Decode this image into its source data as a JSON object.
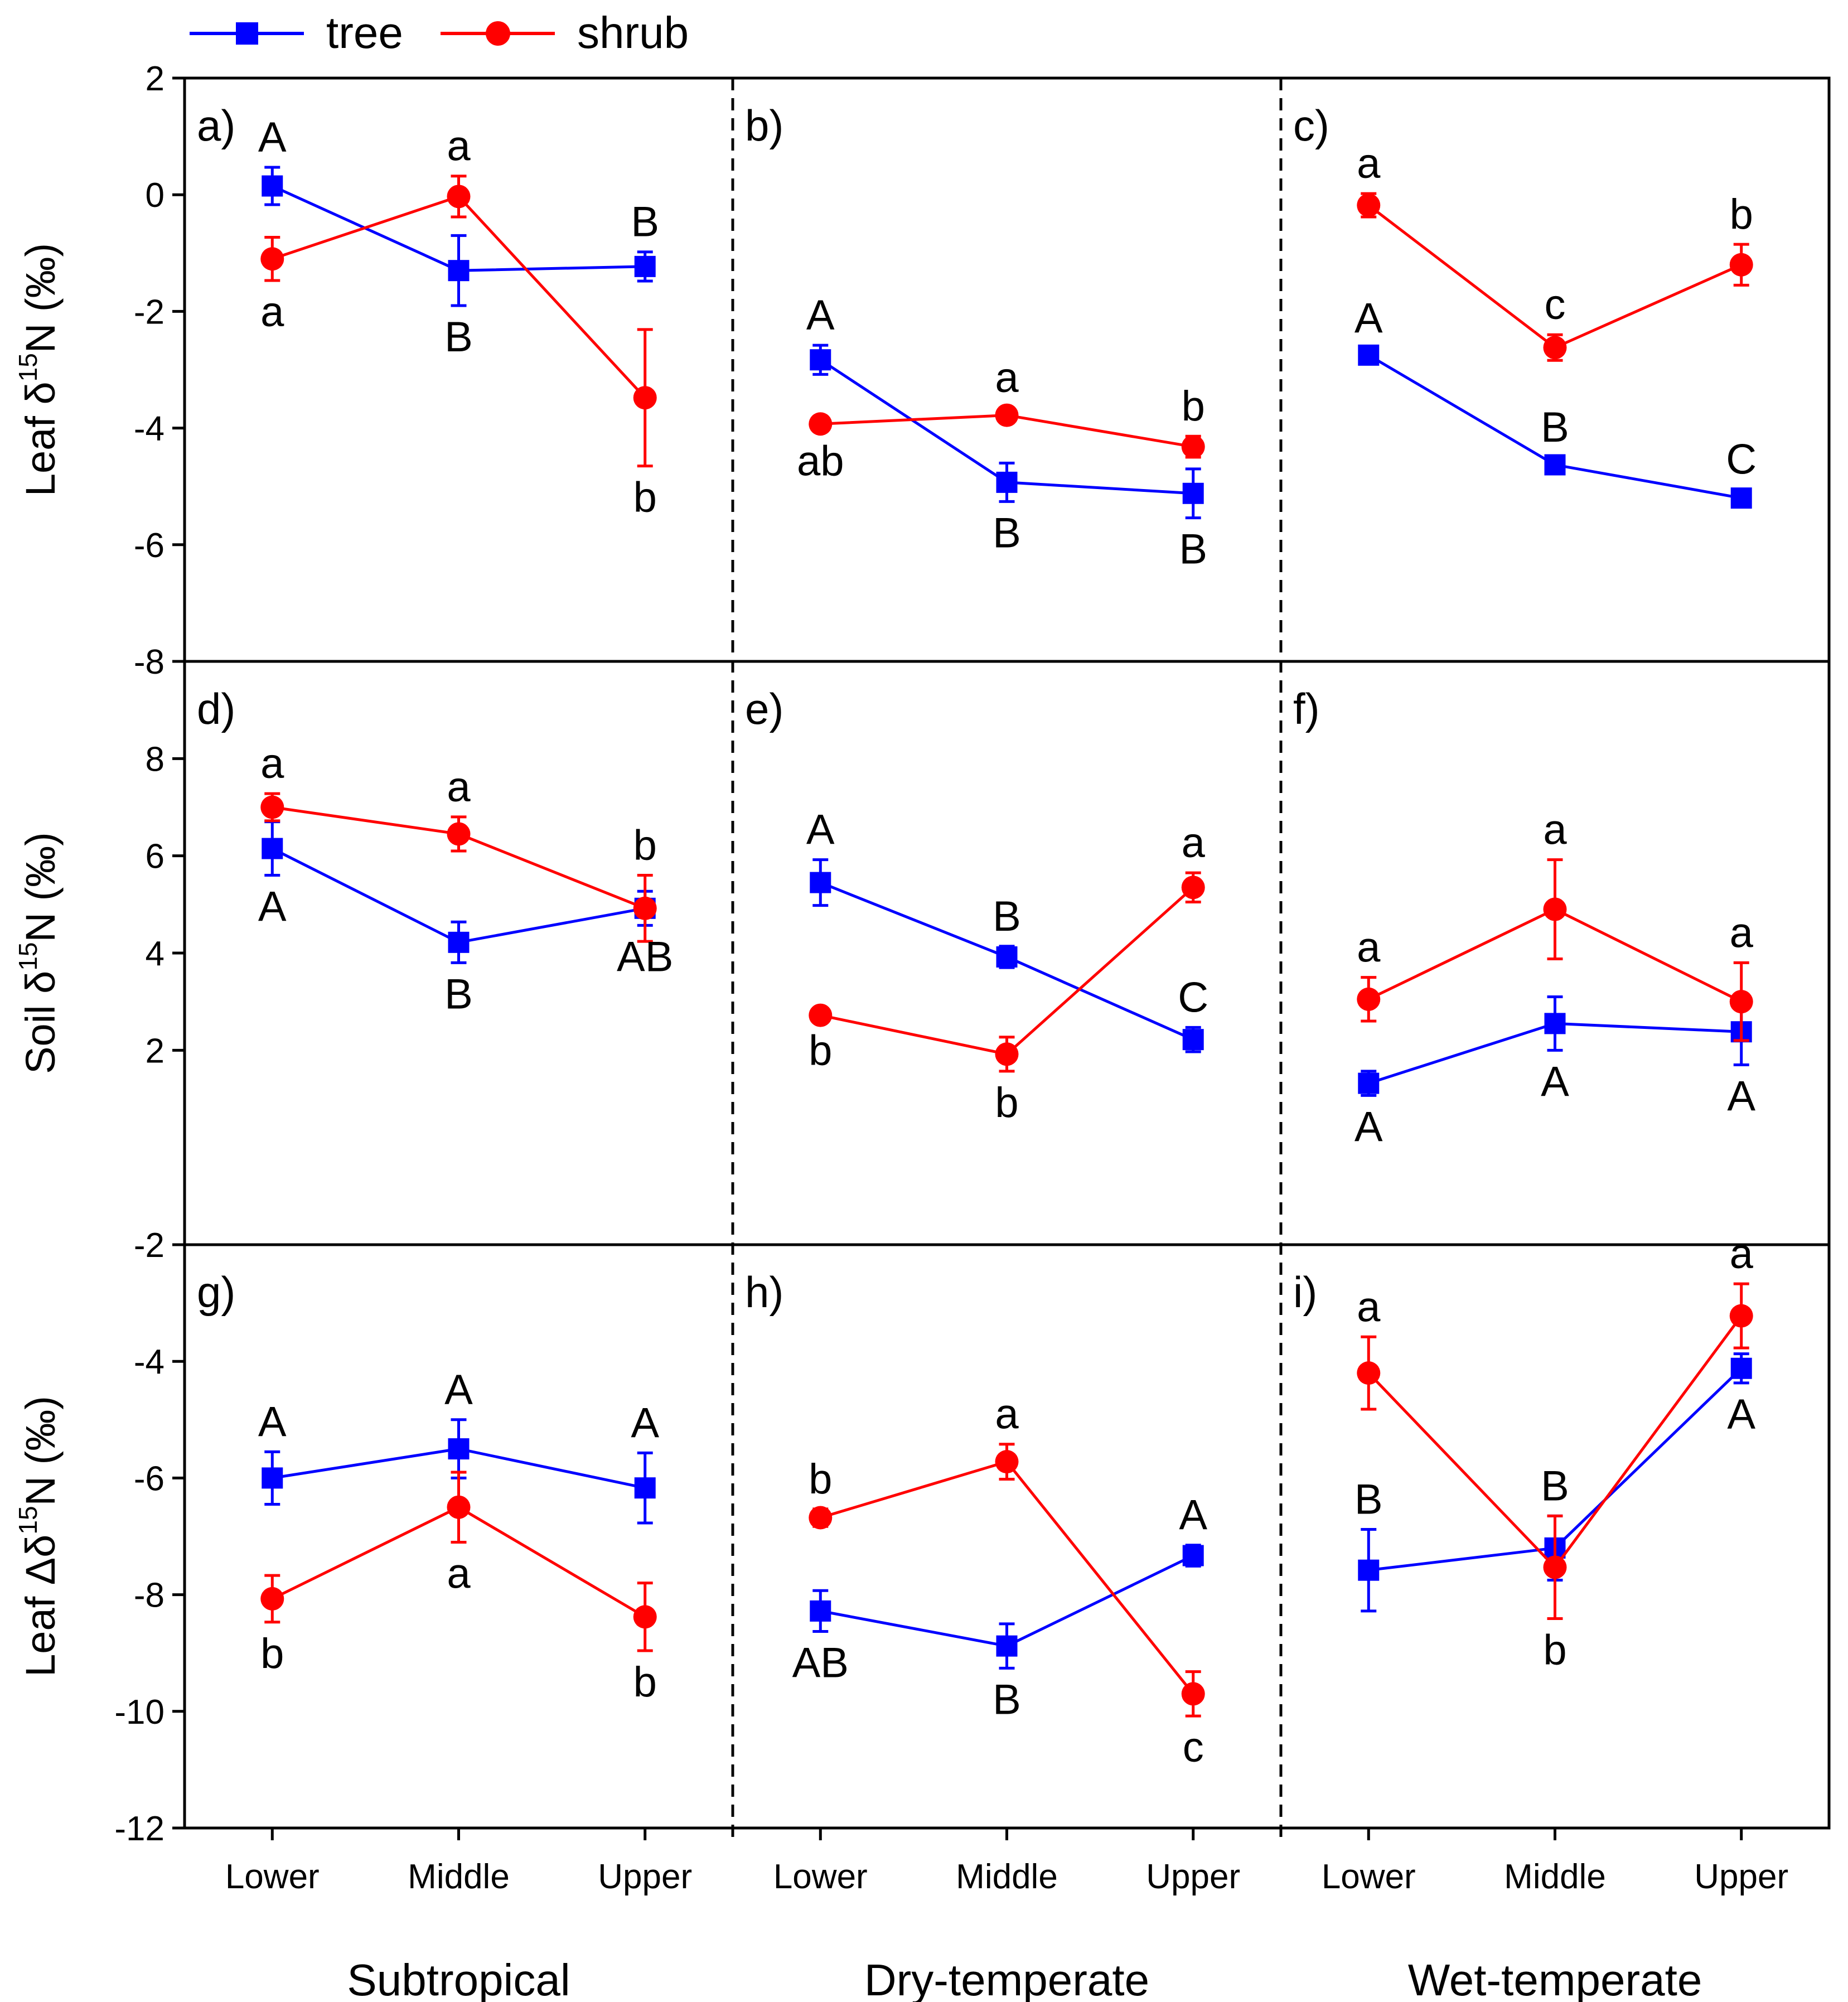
{
  "legend": {
    "placement": "top-left",
    "entries": [
      {
        "key": "tree",
        "label": "tree",
        "color": "#0000ff",
        "marker": "square"
      },
      {
        "key": "shrub",
        "label": "shrub",
        "color": "#ff0000",
        "marker": "circle"
      }
    ]
  },
  "chart_data": {
    "type": "line",
    "x_categories": [
      "Lower",
      "Middle",
      "Upper"
    ],
    "column_groups": [
      "Subtropical",
      "Dry-temperate",
      "Wet-temperate"
    ],
    "rows": [
      {
        "ylabel_main": "Leaf δ",
        "ylabel_sup": "15",
        "ylabel_tail": "N (‰)",
        "ylim": [
          -8,
          2
        ],
        "ticks": [
          "2",
          "0",
          "-2",
          "-4",
          "-6",
          "-8"
        ]
      },
      {
        "ylabel_main": "Soil δ",
        "ylabel_sup": "15",
        "ylabel_tail": "N (‰)",
        "ylim": [
          -2,
          10
        ],
        "ticks": [
          "8",
          "6",
          "4",
          "2",
          "-2"
        ]
      },
      {
        "ylabel_main": "Leaf Δδ",
        "ylabel_sup": "15",
        "ylabel_tail": "N  (‰)",
        "ylim": [
          -12,
          -2
        ],
        "ticks": [
          "-4",
          "-6",
          "-8",
          "-10",
          "-12"
        ]
      }
    ],
    "panels": [
      {
        "label": "a)",
        "row": 0,
        "col": 0,
        "tree": {
          "values": [
            0.15,
            -1.3,
            -1.23
          ],
          "err": [
            0.32,
            0.6,
            0.25
          ],
          "letters": [
            "A",
            "B",
            "B"
          ],
          "pos": [
            "above",
            "below",
            "above"
          ]
        },
        "shrub": {
          "values": [
            -1.1,
            -0.03,
            -3.48
          ],
          "err": [
            0.37,
            0.35,
            1.17
          ],
          "letters": [
            "a",
            "a",
            "b"
          ],
          "pos": [
            "below",
            "above",
            "below"
          ]
        }
      },
      {
        "label": "b)",
        "row": 0,
        "col": 1,
        "tree": {
          "values": [
            -2.83,
            -4.93,
            -5.12
          ],
          "err": [
            0.25,
            0.33,
            0.42
          ],
          "letters": [
            "A",
            "B",
            "B"
          ],
          "pos": [
            "above",
            "below",
            "below"
          ]
        },
        "shrub": {
          "values": [
            -3.93,
            -3.78,
            -4.32
          ],
          "err": [
            0.1,
            0.13,
            0.18
          ],
          "letters": [
            "ab",
            "a",
            "b"
          ],
          "pos": [
            "below",
            "above",
            "above"
          ]
        }
      },
      {
        "label": "c)",
        "row": 0,
        "col": 2,
        "tree": {
          "values": [
            -2.75,
            -4.63,
            -5.2
          ],
          "err": [
            0.12,
            0.13,
            0.15
          ],
          "letters": [
            "A",
            "B",
            "C"
          ],
          "pos": [
            "above",
            "above",
            "above"
          ]
        },
        "shrub": {
          "values": [
            -0.18,
            -2.62,
            -1.2
          ],
          "err": [
            0.2,
            0.22,
            0.35
          ],
          "letters": [
            "a",
            "c",
            "b"
          ],
          "pos": [
            "above",
            "above",
            "above"
          ]
        }
      },
      {
        "label": "d)",
        "row": 1,
        "col": 0,
        "tree": {
          "values": [
            6.15,
            4.22,
            4.92
          ],
          "err": [
            0.55,
            0.42,
            0.35
          ],
          "letters": [
            "A",
            "B",
            "AB"
          ],
          "pos": [
            "below",
            "below",
            "below"
          ]
        },
        "shrub": {
          "values": [
            7.0,
            6.45,
            4.92
          ],
          "err": [
            0.28,
            0.35,
            0.68
          ],
          "letters": [
            "a",
            "a",
            "b"
          ],
          "pos": [
            "above",
            "above",
            "above"
          ]
        }
      },
      {
        "label": "e)",
        "row": 1,
        "col": 1,
        "tree": {
          "values": [
            5.45,
            3.92,
            2.22
          ],
          "err": [
            0.47,
            0.22,
            0.25
          ],
          "letters": [
            "A",
            "B",
            "C"
          ],
          "pos": [
            "above",
            "above",
            "above"
          ]
        },
        "shrub": {
          "values": [
            2.72,
            1.92,
            5.35
          ],
          "err": [
            0.08,
            0.35,
            0.3
          ],
          "letters": [
            "b",
            "b",
            "a"
          ],
          "pos": [
            "below",
            "below",
            "above"
          ]
        }
      },
      {
        "label": "f)",
        "row": 1,
        "col": 2,
        "tree": {
          "values": [
            1.32,
            2.55,
            2.38
          ],
          "err": [
            0.25,
            0.55,
            0.68
          ],
          "letters": [
            "A",
            "A",
            "A"
          ],
          "pos": [
            "below",
            "below",
            "below"
          ]
        },
        "shrub": {
          "values": [
            3.05,
            4.9,
            3.0
          ],
          "err": [
            0.45,
            1.02,
            0.8
          ],
          "letters": [
            "a",
            "a",
            "a"
          ],
          "pos": [
            "above",
            "above",
            "above"
          ]
        }
      },
      {
        "label": "g)",
        "row": 2,
        "col": 0,
        "tree": {
          "values": [
            -6.0,
            -5.5,
            -6.17
          ],
          "err": [
            0.45,
            0.5,
            0.6
          ],
          "letters": [
            "A",
            "A",
            "A"
          ],
          "pos": [
            "above",
            "above",
            "above"
          ]
        },
        "shrub": {
          "values": [
            -8.07,
            -6.5,
            -8.38
          ],
          "err": [
            0.4,
            0.6,
            0.58
          ],
          "letters": [
            "b",
            "a",
            "b"
          ],
          "pos": [
            "below",
            "below",
            "below"
          ]
        }
      },
      {
        "label": "h)",
        "row": 2,
        "col": 1,
        "tree": {
          "values": [
            -8.28,
            -8.88,
            -7.33
          ],
          "err": [
            0.35,
            0.38,
            0.18
          ],
          "letters": [
            "AB",
            "B",
            "A"
          ],
          "pos": [
            "below",
            "below",
            "above"
          ]
        },
        "shrub": {
          "values": [
            -6.68,
            -5.72,
            -9.7
          ],
          "err": [
            0.15,
            0.3,
            0.38
          ],
          "letters": [
            "b",
            "a",
            "c"
          ],
          "pos": [
            "above",
            "above",
            "below"
          ]
        }
      },
      {
        "label": "i)",
        "row": 2,
        "col": 2,
        "tree": {
          "values": [
            -7.58,
            -7.2,
            -4.12
          ],
          "err": [
            0.7,
            0.55,
            0.25
          ],
          "letters": [
            "B",
            "B",
            "A"
          ],
          "pos": [
            "above",
            "above",
            "below"
          ]
        },
        "shrub": {
          "values": [
            -4.2,
            -7.53,
            -3.22
          ],
          "err": [
            0.62,
            0.88,
            0.55
          ],
          "letters": [
            "a",
            "b",
            "a"
          ],
          "pos": [
            "above",
            "below",
            "above"
          ]
        }
      }
    ]
  }
}
